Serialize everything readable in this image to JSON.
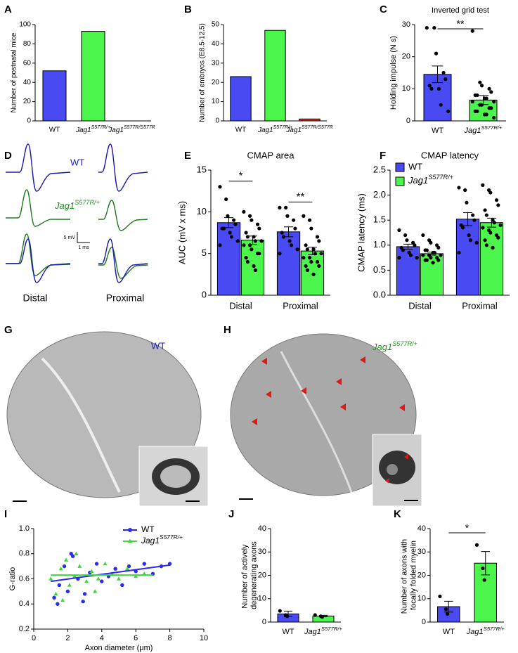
{
  "chart_data": [
    {
      "type": "bar",
      "panel": "A",
      "ylabel": "Number of postnatal mice",
      "categories": [
        "WT",
        "Jag1S577R/+",
        "Jag1S577R/S577R"
      ],
      "values": [
        52,
        93,
        0
      ],
      "colors": [
        "#4a4af2",
        "#4cf54c",
        "#e03a3a"
      ],
      "ylim": [
        0,
        100
      ],
      "yticks": [
        0,
        20,
        40,
        60,
        80,
        100
      ]
    },
    {
      "type": "bar",
      "panel": "B",
      "ylabel": "Number of embryos (E8.5-12.5)",
      "categories": [
        "WT",
        "Jag1S577R/+",
        "Jag1S577R/S577R"
      ],
      "values": [
        23,
        47,
        1
      ],
      "colors": [
        "#4a4af2",
        "#4cf54c",
        "#e03a3a"
      ],
      "ylim": [
        0,
        50
      ],
      "yticks": [
        0,
        10,
        20,
        30,
        40,
        50
      ]
    },
    {
      "type": "bar",
      "panel": "C",
      "title": "Inverted grid test",
      "ylabel": "Holding impulse (N s)",
      "categories": [
        "WT",
        "Jag1S577R/+"
      ],
      "values": [
        14.5,
        6.5
      ],
      "errors": [
        2.6,
        1.4
      ],
      "points": [
        [
          29,
          29,
          21,
          15,
          13,
          11,
          10,
          10,
          5,
          3
        ],
        [
          28,
          12,
          11,
          10,
          9,
          8,
          8,
          7,
          7,
          6,
          6,
          5,
          5,
          4,
          4,
          3,
          3,
          2,
          2,
          1
        ]
      ],
      "annotations": [
        "**"
      ],
      "colors": [
        "#4a4af2",
        "#4cf54c"
      ],
      "ylim": [
        0,
        30
      ],
      "yticks": [
        0,
        10,
        20,
        30
      ]
    },
    {
      "type": "bar",
      "panel": "E",
      "title": "CMAP area",
      "ylabel": "AUC (mV x ms)",
      "categories": [
        "Distal",
        "Proximal"
      ],
      "annotations": [
        "*",
        "**"
      ],
      "series": [
        {
          "name": "WT",
          "color": "#4a4af2",
          "values": [
            8.7,
            7.6
          ],
          "errors": [
            0.6,
            0.6
          ],
          "points": [
            [
              13,
              11.5,
              9.5,
              9,
              8.5,
              8,
              8,
              7.5,
              7,
              6.5,
              6
            ],
            [
              10.5,
              10.5,
              9.5,
              9,
              8,
              7.5,
              7,
              6.5,
              6,
              5.5,
              5
            ]
          ]
        },
        {
          "name": "Jag1S577R/+",
          "color": "#4cf54c",
          "values": [
            6.6,
            5.3
          ],
          "errors": [
            0.5,
            0.45
          ],
          "points": [
            [
              10,
              9.5,
              9,
              8.5,
              8,
              7.5,
              7,
              7,
              6.5,
              6.5,
              6,
              6,
              5.5,
              5,
              5,
              4.5,
              4,
              3.5,
              3
            ],
            [
              9.5,
              9,
              8,
              7,
              6.5,
              6,
              5.5,
              5.5,
              5,
              5,
              4.5,
              4.5,
              4,
              4,
              3.5,
              3.5,
              3,
              2.5
            ]
          ]
        }
      ],
      "ylim": [
        0,
        15
      ],
      "yticks": [
        0,
        5,
        10,
        15
      ]
    },
    {
      "type": "bar",
      "panel": "F",
      "title": "CMAP latency",
      "ylabel": "CMAP latency (ms)",
      "categories": [
        "Distal",
        "Proximal"
      ],
      "legend": "top-left",
      "series": [
        {
          "name": "WT",
          "color": "#4a4af2",
          "values": [
            0.97,
            1.52
          ],
          "errors": [
            0.05,
            0.13
          ],
          "points": [
            [
              1.3,
              1.2,
              1.1,
              1.05,
              1.0,
              0.95,
              0.9,
              0.85,
              0.8,
              0.75,
              0.75
            ],
            [
              2.15,
              2.1,
              1.85,
              1.6,
              1.5,
              1.4,
              1.35,
              1.2,
              1.1,
              1.05,
              0.85
            ]
          ]
        },
        {
          "name": "Jag1S577R/+",
          "color": "#4cf54c",
          "values": [
            0.83,
            1.45
          ],
          "errors": [
            0.03,
            0.09
          ],
          "points": [
            [
              1.2,
              1.1,
              1.05,
              1,
              0.95,
              0.9,
              0.9,
              0.85,
              0.85,
              0.8,
              0.8,
              0.8,
              0.75,
              0.75,
              0.7,
              0.7,
              0.7,
              0.65
            ],
            [
              2.2,
              2.1,
              2.05,
              1.9,
              1.8,
              1.7,
              1.6,
              1.5,
              1.45,
              1.4,
              1.35,
              1.3,
              1.25,
              1.2,
              1.15,
              1.1,
              1.0,
              0.95
            ]
          ]
        }
      ],
      "ylim": [
        0,
        2.5
      ],
      "yticks": [
        {
          "value": 0,
          "label": "0.0"
        },
        0.5,
        {
          "value": 1,
          "label": "1.0"
        },
        1.5,
        {
          "value": 2,
          "label": "2.0"
        },
        2.5
      ]
    },
    {
      "type": "scatter",
      "panel": "I",
      "xlabel": "Axon diameter (μm)",
      "ylabel": "G-ratio",
      "legend": "top-right",
      "series": [
        {
          "name": "WT",
          "color": "#2a2af0",
          "marker": "circle",
          "x": [
            1.2,
            1.5,
            1.8,
            2.0,
            2.3,
            2.6,
            3.0,
            3.3,
            3.7,
            4.0,
            4.4,
            4.8,
            5.2,
            5.6,
            6.0,
            6.5,
            7.0,
            7.5,
            8.0,
            1.4,
            2.2,
            2.9
          ],
          "y": [
            0.45,
            0.55,
            0.7,
            0.5,
            0.78,
            0.6,
            0.48,
            0.65,
            0.72,
            0.58,
            0.62,
            0.68,
            0.55,
            0.7,
            0.66,
            0.72,
            0.64,
            0.7,
            0.72,
            0.4,
            0.8,
            0.42
          ],
          "fit_x": [
            1,
            8
          ],
          "fit_y": [
            0.58,
            0.71
          ]
        },
        {
          "name": "Jag1S577R/+",
          "color": "#3ed63e",
          "marker": "triangle",
          "x": [
            1.0,
            1.3,
            1.6,
            1.9,
            2.1,
            2.4,
            2.7,
            3.1,
            3.4,
            3.8,
            4.2,
            4.6,
            5.0,
            5.5,
            6.0,
            6.5,
            1.7,
            2.5,
            3.6
          ],
          "y": [
            0.6,
            0.48,
            0.68,
            0.75,
            0.55,
            0.62,
            0.7,
            0.58,
            0.66,
            0.6,
            0.72,
            0.64,
            0.6,
            0.68,
            0.62,
            0.64,
            0.43,
            0.8,
            0.5
          ],
          "fit_x": [
            1,
            7
          ],
          "fit_y": [
            0.63,
            0.63
          ]
        }
      ],
      "xlim": [
        0,
        10
      ],
      "xticks": [
        0,
        2,
        4,
        6,
        8,
        10
      ],
      "ylim": [
        0.2,
        1.0
      ],
      "yticks": [
        0.2,
        0.4,
        0.6,
        0.8,
        {
          "value": 1.0,
          "label": "1.0"
        }
      ]
    },
    {
      "type": "bar",
      "panel": "J",
      "ylabel": "Number of actively degenerating axons",
      "categories": [
        "WT",
        "Jag1S577R/+"
      ],
      "values": [
        3.5,
        2.6
      ],
      "errors": [
        1.2,
        0.3
      ],
      "points": [
        [
          4.8,
          3,
          2.5
        ],
        [
          3,
          2.5,
          2.2
        ]
      ],
      "colors": [
        "#4a4af2",
        "#4cf54c"
      ],
      "ylim": [
        0,
        40
      ],
      "yticks": [
        0,
        10,
        20,
        30,
        40
      ]
    },
    {
      "type": "bar",
      "panel": "K",
      "ylabel": "Number of axons with focally folded myelin",
      "categories": [
        "WT",
        "Jag1S577R/+"
      ],
      "values": [
        6.6,
        25.2
      ],
      "errors": [
        2.3,
        5
      ],
      "points": [
        [
          11,
          5.5,
          3.5
        ],
        [
          33,
          23,
          18
        ]
      ],
      "annotations": [
        "*"
      ],
      "colors": [
        "#4a4af2",
        "#4cf54c"
      ],
      "ylim": [
        0,
        40
      ],
      "yticks": [
        0,
        10,
        20,
        30,
        40
      ]
    }
  ],
  "figures": {
    "D": {
      "panel": "D",
      "wt_label": "WT",
      "mutant_label": "Jag1S577R/+",
      "scale_y": "5 mV",
      "scale_x": "1 ms",
      "left_label": "Distal",
      "right_label": "Proximal"
    },
    "G": {
      "panel": "G",
      "label": "WT"
    },
    "H": {
      "panel": "H",
      "label": "Jag1S577R/+"
    }
  }
}
